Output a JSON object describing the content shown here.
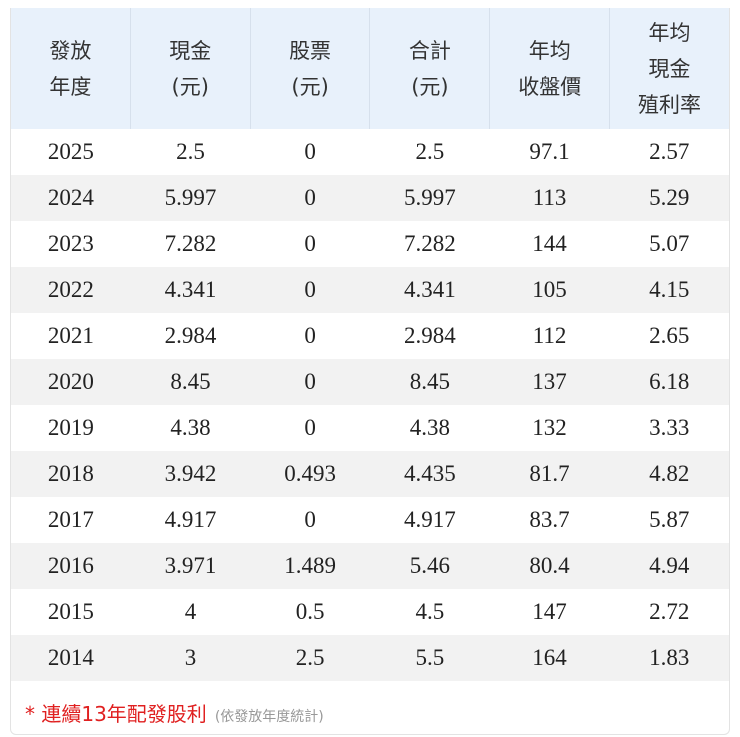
{
  "table": {
    "header": [
      [
        "發放",
        "年度"
      ],
      [
        "現金",
        "(元)"
      ],
      [
        "股票",
        "(元)"
      ],
      [
        "合計",
        "(元)"
      ],
      [
        "年均",
        "收盤價"
      ],
      [
        "年均",
        "現金",
        "殖利率"
      ]
    ],
    "rows": [
      [
        "2025",
        "2.5",
        "0",
        "2.5",
        "97.1",
        "2.57"
      ],
      [
        "2024",
        "5.997",
        "0",
        "5.997",
        "113",
        "5.29"
      ],
      [
        "2023",
        "7.282",
        "0",
        "7.282",
        "144",
        "5.07"
      ],
      [
        "2022",
        "4.341",
        "0",
        "4.341",
        "105",
        "4.15"
      ],
      [
        "2021",
        "2.984",
        "0",
        "2.984",
        "112",
        "2.65"
      ],
      [
        "2020",
        "8.45",
        "0",
        "8.45",
        "137",
        "6.18"
      ],
      [
        "2019",
        "4.38",
        "0",
        "4.38",
        "132",
        "3.33"
      ],
      [
        "2018",
        "3.942",
        "0.493",
        "4.435",
        "81.7",
        "4.82"
      ],
      [
        "2017",
        "4.917",
        "0",
        "4.917",
        "83.7",
        "5.87"
      ],
      [
        "2016",
        "3.971",
        "1.489",
        "5.46",
        "80.4",
        "4.94"
      ],
      [
        "2015",
        "4",
        "0.5",
        "4.5",
        "147",
        "2.72"
      ],
      [
        "2014",
        "3",
        "2.5",
        "5.5",
        "164",
        "1.83"
      ]
    ]
  },
  "footnote": {
    "main": "* 連續13年配發股利",
    "note": "(依發放年度統計)"
  }
}
